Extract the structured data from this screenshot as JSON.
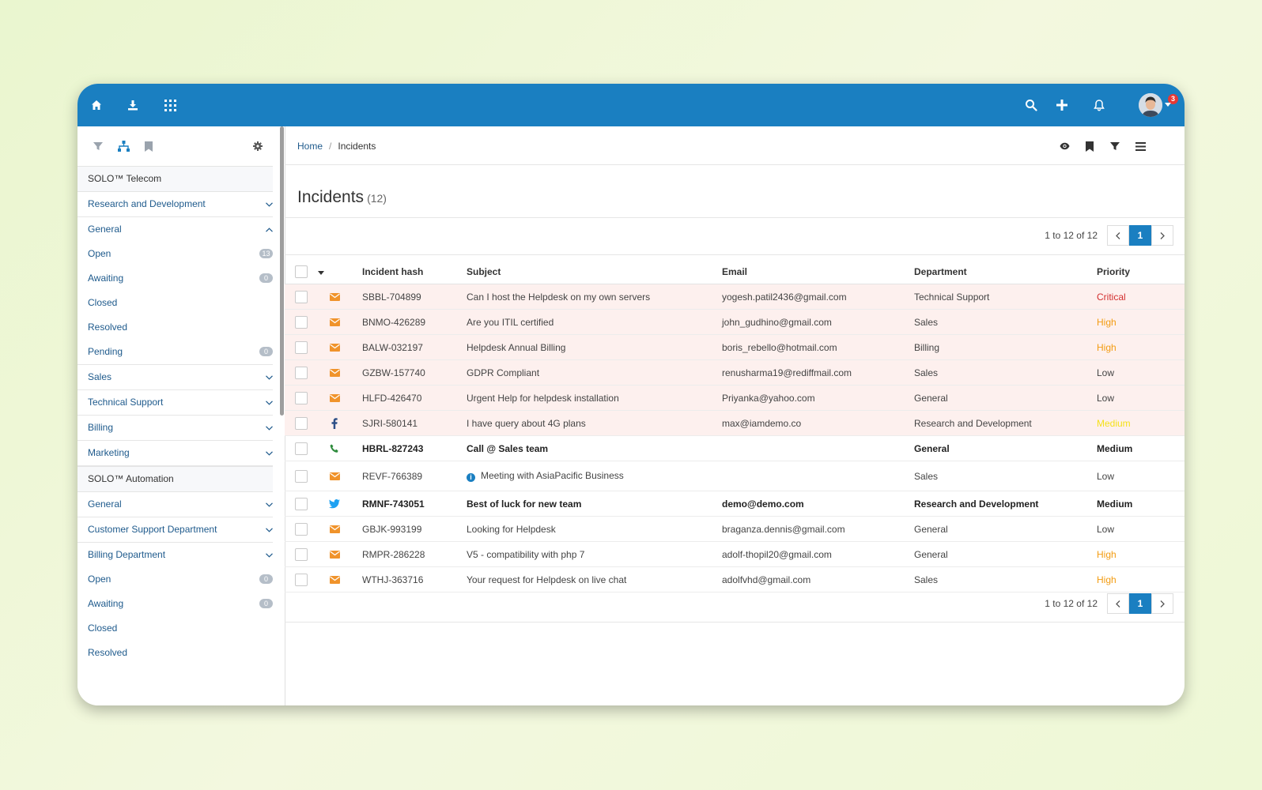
{
  "topbar": {
    "icons_left": [
      "home-icon",
      "download-icon",
      "apps-grid-icon"
    ],
    "icons_right": [
      "search-icon",
      "plus-icon",
      "bell-icon"
    ],
    "notification_count": "3"
  },
  "sidebar": {
    "tools": [
      "filter-icon",
      "sitemap-icon",
      "bookmark-icon",
      "settings-icon"
    ],
    "groups": [
      {
        "name": "SOLO™ Telecom",
        "items": [
          {
            "label": "Research and Development",
            "chevron": "down"
          },
          {
            "label": "General",
            "chevron": "up",
            "sub": [
              {
                "label": "Open",
                "count": "13"
              },
              {
                "label": "Awaiting",
                "count": "0"
              },
              {
                "label": "Closed"
              },
              {
                "label": "Resolved"
              },
              {
                "label": "Pending",
                "count": "0"
              }
            ]
          },
          {
            "label": "Sales",
            "chevron": "down"
          },
          {
            "label": "Technical Support",
            "chevron": "down"
          },
          {
            "label": "Billing",
            "chevron": "down"
          },
          {
            "label": "Marketing",
            "chevron": "down"
          }
        ]
      },
      {
        "name": "SOLO™ Automation",
        "items": [
          {
            "label": "General",
            "chevron": "down"
          },
          {
            "label": "Customer Support Department",
            "chevron": "down"
          },
          {
            "label": "Billing Department",
            "chevron": "down",
            "sub": [
              {
                "label": "Open",
                "count": "0"
              },
              {
                "label": "Awaiting",
                "count": "0"
              },
              {
                "label": "Closed"
              },
              {
                "label": "Resolved"
              }
            ]
          }
        ]
      }
    ]
  },
  "breadcrumb": {
    "home": "Home",
    "separator": "/",
    "current": "Incidents"
  },
  "page": {
    "title": "Incidents",
    "count": "(12)"
  },
  "pagination": {
    "info": "1 to 12 of 12",
    "current_page": "1"
  },
  "table": {
    "columns": {
      "hash": "Incident hash",
      "subject": "Subject",
      "email": "Email",
      "department": "Department",
      "priority": "Priority"
    },
    "rows": [
      {
        "channel": "email",
        "hash": "SBBL-704899",
        "subject": "Can I host the Helpdesk on my own servers",
        "email": "yogesh.patil2436@gmail.com",
        "department": "Technical Support",
        "priority": "Critical",
        "highlight": true
      },
      {
        "channel": "email",
        "hash": "BNMO-426289",
        "subject": "Are you ITIL certified",
        "email": "john_gudhino@gmail.com",
        "department": "Sales",
        "priority": "High",
        "highlight": true
      },
      {
        "channel": "email",
        "hash": "BALW-032197",
        "subject": "Helpdesk Annual Billing",
        "email": "boris_rebello@hotmail.com",
        "department": "Billing",
        "priority": "High",
        "highlight": true
      },
      {
        "channel": "email",
        "hash": "GZBW-157740",
        "subject": "GDPR Compliant",
        "email": "renusharma19@rediffmail.com",
        "department": "Sales",
        "priority": "Low",
        "highlight": true
      },
      {
        "channel": "email",
        "hash": "HLFD-426470",
        "subject": "Urgent Help for helpdesk installation",
        "email": "Priyanka@yahoo.com",
        "department": "General",
        "priority": "Low",
        "highlight": true
      },
      {
        "channel": "facebook",
        "hash": "SJRI-580141",
        "subject": "I have query about 4G plans",
        "email": "max@iamdemo.co",
        "department": "Research and Development",
        "priority": "Medium",
        "highlight": true
      },
      {
        "channel": "phone",
        "hash": "HBRL-827243",
        "subject": "Call @ Sales team",
        "email": "",
        "department": "General",
        "priority": "Medium",
        "bold": true
      },
      {
        "channel": "email",
        "hash": "REVF-766389",
        "subject": "Meeting with AsiaPacific Business",
        "email": "",
        "department": "Sales",
        "priority": "Low",
        "info": true
      },
      {
        "channel": "twitter",
        "hash": "RMNF-743051",
        "subject": "Best of luck for new team",
        "email": "demo@demo.com",
        "department": "Research and Development",
        "priority": "Medium",
        "bold": true
      },
      {
        "channel": "email",
        "hash": "GBJK-993199",
        "subject": "Looking for Helpdesk",
        "email": "braganza.dennis@gmail.com",
        "department": "General",
        "priority": "Low"
      },
      {
        "channel": "email",
        "hash": "RMPR-286228",
        "subject": "V5 - compatibility with php 7",
        "email": "adolf-thopil20@gmail.com",
        "department": "General",
        "priority": "High"
      },
      {
        "channel": "email",
        "hash": "WTHJ-363716",
        "subject": "Your request for Helpdesk on live chat",
        "email": "adolfvhd@gmail.com",
        "department": "Sales",
        "priority": "High"
      }
    ]
  },
  "colors": {
    "brand": "#1a7fc1",
    "highlight_row": "#fdf0ee",
    "critical": "#d32f2f",
    "high": "#f39c12",
    "medium": "#f5e11a",
    "email_icon": "#f0932b"
  }
}
